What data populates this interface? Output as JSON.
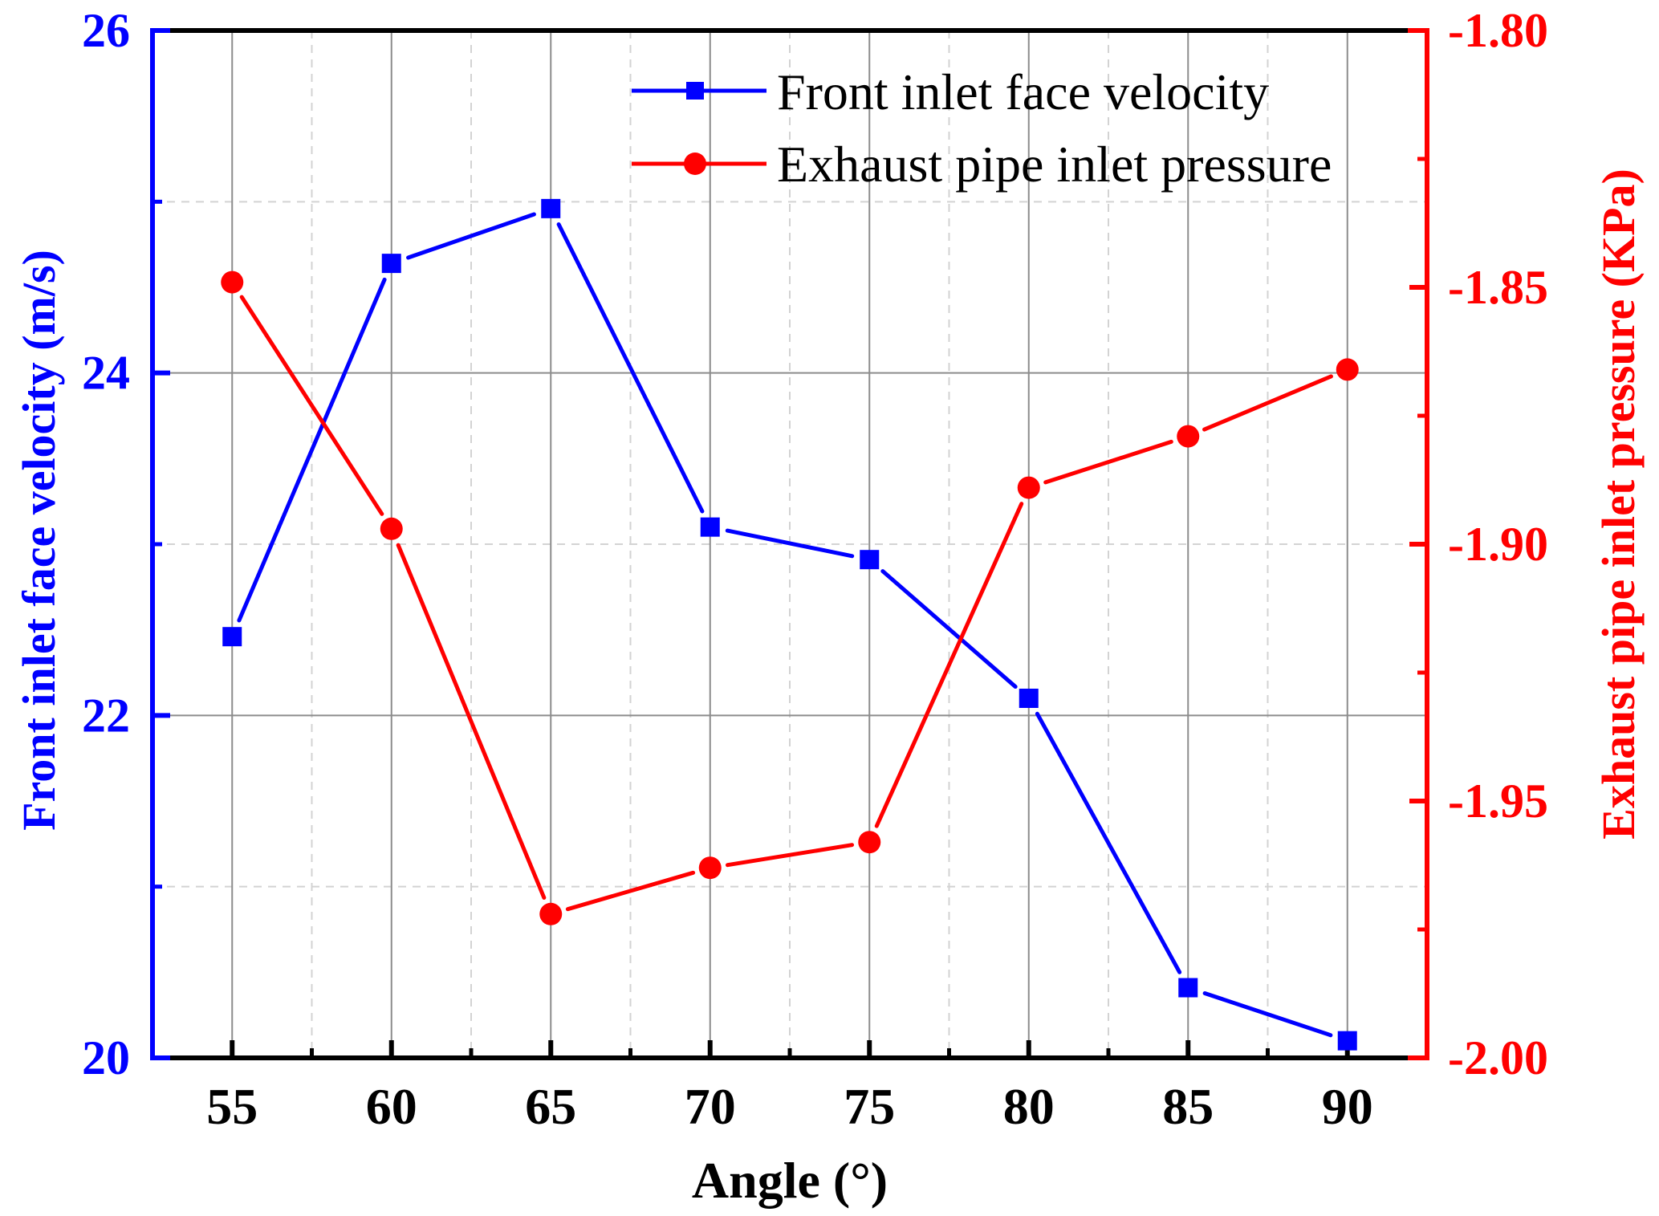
{
  "chart_data": {
    "type": "line",
    "title": "",
    "xlabel": "Angle (°)",
    "ylabel_left": "Front inlet face velocity (m/s)",
    "ylabel_right": "Exhaust pipe inlet pressure (KPa)",
    "x": [
      55,
      60,
      65,
      70,
      75,
      80,
      85,
      90
    ],
    "x_ticks": [
      "55",
      "60",
      "65",
      "70",
      "75",
      "80",
      "85",
      "90"
    ],
    "xlim": [
      52.5,
      92.5
    ],
    "y_left_ticks": [
      "20",
      "22",
      "24",
      "26"
    ],
    "ylim_left": [
      20,
      26
    ],
    "y_right_ticks": [
      "-2.00",
      "-1.95",
      "-1.90",
      "-1.85",
      "-1.80"
    ],
    "ylim_right": [
      -2.0,
      -1.8
    ],
    "grid": true,
    "legend_position": "top-right",
    "series": [
      {
        "name": "Front inlet face velocity",
        "axis": "left",
        "marker": "square",
        "color": "#0000ff",
        "values": [
          22.46,
          24.64,
          24.96,
          23.1,
          22.91,
          22.1,
          20.41,
          20.1
        ]
      },
      {
        "name": "Exhaust pipe inlet pressure",
        "axis": "right",
        "marker": "circle",
        "color": "#ff0000",
        "values": [
          -1.849,
          -1.897,
          -1.972,
          -1.963,
          -1.958,
          -1.889,
          -1.879,
          -1.866
        ]
      }
    ],
    "colors": {
      "left_axis": "#0000ff",
      "right_axis": "#ff0000",
      "frame": "#000000",
      "major_grid": "#8c8c8c",
      "minor_grid": "#d3d3d3"
    }
  }
}
